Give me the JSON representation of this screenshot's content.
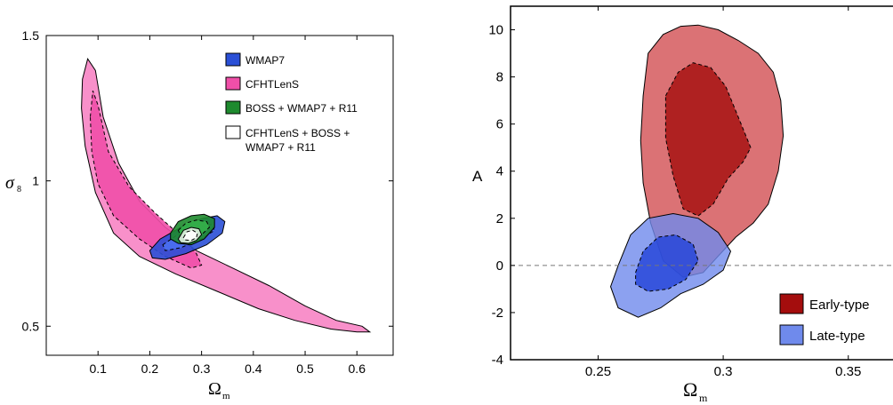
{
  "chart_data": [
    {
      "type": "contour",
      "title": "",
      "xlabel": "Ω",
      "xlabel_sub": "m",
      "ylabel": "σ",
      "ylabel_sub": "8",
      "xlim": [
        0.0,
        0.67
      ],
      "ylim": [
        0.4,
        1.5
      ],
      "xticks": [
        0.1,
        0.2,
        0.3,
        0.4,
        0.5,
        0.6
      ],
      "xtick_labels": [
        "0.1",
        "0.2",
        "0.3",
        "0.4",
        "0.5",
        "0.6"
      ],
      "yticks": [
        0.5,
        1.0,
        1.5
      ],
      "ytick_labels": [
        "0.5",
        "1",
        "1.5"
      ],
      "legend_position": "top-right",
      "legend": [
        {
          "label": "WMAP7",
          "color": "#2a4fd6"
        },
        {
          "label": "CFHTLenS",
          "color": "#f04fa8"
        },
        {
          "label": "BOSS + WMAP7 + R11",
          "color": "#1e8a2e"
        },
        {
          "label": "CFHTLenS + BOSS +",
          "label2": "WMAP7 + R11",
          "color": "#ffffff"
        }
      ],
      "series": [
        {
          "name": "CFHTLenS",
          "color": "#f784c4",
          "level": "outer",
          "points": [
            [
              0.07,
              1.35
            ],
            [
              0.08,
              1.42
            ],
            [
              0.095,
              1.38
            ],
            [
              0.11,
              1.22
            ],
            [
              0.14,
              1.06
            ],
            [
              0.18,
              0.93
            ],
            [
              0.23,
              0.84
            ],
            [
              0.29,
              0.76
            ],
            [
              0.36,
              0.7
            ],
            [
              0.43,
              0.64
            ],
            [
              0.5,
              0.57
            ],
            [
              0.56,
              0.52
            ],
            [
              0.61,
              0.5
            ],
            [
              0.625,
              0.48
            ],
            [
              0.6,
              0.48
            ],
            [
              0.55,
              0.49
            ],
            [
              0.48,
              0.52
            ],
            [
              0.41,
              0.56
            ],
            [
              0.33,
              0.62
            ],
            [
              0.25,
              0.68
            ],
            [
              0.18,
              0.74
            ],
            [
              0.13,
              0.82
            ],
            [
              0.095,
              0.96
            ],
            [
              0.075,
              1.12
            ],
            [
              0.068,
              1.25
            ]
          ]
        },
        {
          "name": "CFHTLenS",
          "color": "#f04fa8",
          "level": "inner",
          "points": [
            [
              0.085,
              1.22
            ],
            [
              0.09,
              1.31
            ],
            [
              0.1,
              1.26
            ],
            [
              0.12,
              1.1
            ],
            [
              0.16,
              0.98
            ],
            [
              0.21,
              0.89
            ],
            [
              0.26,
              0.81
            ],
            [
              0.29,
              0.75
            ],
            [
              0.3,
              0.71
            ],
            [
              0.28,
              0.7
            ],
            [
              0.23,
              0.74
            ],
            [
              0.18,
              0.8
            ],
            [
              0.13,
              0.88
            ],
            [
              0.1,
              0.99
            ],
            [
              0.088,
              1.1
            ]
          ]
        },
        {
          "name": "WMAP7",
          "color": "#2a4fd6",
          "level": "outer",
          "points": [
            [
              0.2,
              0.76
            ],
            [
              0.22,
              0.8
            ],
            [
              0.26,
              0.84
            ],
            [
              0.3,
              0.87
            ],
            [
              0.33,
              0.88
            ],
            [
              0.345,
              0.86
            ],
            [
              0.34,
              0.82
            ],
            [
              0.31,
              0.78
            ],
            [
              0.27,
              0.75
            ],
            [
              0.23,
              0.73
            ],
            [
              0.205,
              0.735
            ]
          ]
        },
        {
          "name": "WMAP7",
          "color": "#4a6ff0",
          "level": "inner",
          "points": [
            [
              0.225,
              0.78
            ],
            [
              0.25,
              0.81
            ],
            [
              0.29,
              0.84
            ],
            [
              0.32,
              0.85
            ],
            [
              0.325,
              0.83
            ],
            [
              0.3,
              0.8
            ],
            [
              0.26,
              0.77
            ],
            [
              0.23,
              0.76
            ]
          ]
        },
        {
          "name": "BOSS + WMAP7 + R11",
          "color": "#1e8a2e",
          "level": "outer",
          "points": [
            [
              0.24,
              0.82
            ],
            [
              0.255,
              0.86
            ],
            [
              0.28,
              0.88
            ],
            [
              0.305,
              0.885
            ],
            [
              0.325,
              0.87
            ],
            [
              0.325,
              0.84
            ],
            [
              0.305,
              0.8
            ],
            [
              0.28,
              0.78
            ],
            [
              0.255,
              0.785
            ],
            [
              0.24,
              0.8
            ]
          ]
        },
        {
          "name": "BOSS + WMAP7 + R11",
          "color": "#35b04a",
          "level": "inner",
          "points": [
            [
              0.255,
              0.83
            ],
            [
              0.27,
              0.855
            ],
            [
              0.29,
              0.865
            ],
            [
              0.31,
              0.86
            ],
            [
              0.315,
              0.84
            ],
            [
              0.3,
              0.815
            ],
            [
              0.28,
              0.8
            ],
            [
              0.262,
              0.805
            ]
          ]
        },
        {
          "name": "CFHTLenS + BOSS + WMAP7 + R11",
          "color": "#e2efe2",
          "level": "outer",
          "points": [
            [
              0.255,
              0.8
            ],
            [
              0.265,
              0.83
            ],
            [
              0.28,
              0.84
            ],
            [
              0.295,
              0.835
            ],
            [
              0.3,
              0.815
            ],
            [
              0.29,
              0.795
            ],
            [
              0.275,
              0.785
            ],
            [
              0.26,
              0.787
            ]
          ]
        },
        {
          "name": "CFHTLenS + BOSS + WMAP7 + R11",
          "color": "#ffffff",
          "level": "inner",
          "points": [
            [
              0.265,
              0.805
            ],
            [
              0.272,
              0.825
            ],
            [
              0.283,
              0.83
            ],
            [
              0.292,
              0.82
            ],
            [
              0.29,
              0.805
            ],
            [
              0.28,
              0.795
            ],
            [
              0.268,
              0.797
            ]
          ]
        }
      ]
    },
    {
      "type": "contour",
      "title": "",
      "xlabel": "Ω",
      "xlabel_sub": "m",
      "ylabel": "A",
      "xlim": [
        0.215,
        0.37
      ],
      "ylim": [
        -4,
        11
      ],
      "xticks": [
        0.25,
        0.3,
        0.35
      ],
      "xtick_labels": [
        "0.25",
        "0.3",
        "0.35"
      ],
      "yticks": [
        -4,
        -2,
        0,
        2,
        4,
        6,
        8,
        10
      ],
      "ytick_labels": [
        "-4",
        "-2",
        "0",
        "2",
        "4",
        "6",
        "8",
        "10"
      ],
      "zero_line": 0,
      "legend_position": "bottom-right",
      "legend": [
        {
          "label": "Early-type",
          "color": "#a40d0d"
        },
        {
          "label": "Late-type",
          "color": "#6f8aec"
        }
      ],
      "series": [
        {
          "name": "Early-type",
          "color": "#d24f52",
          "level": "outer",
          "points": [
            [
              0.27,
              9.0
            ],
            [
              0.276,
              9.8
            ],
            [
              0.283,
              10.15
            ],
            [
              0.29,
              10.2
            ],
            [
              0.298,
              10.0
            ],
            [
              0.306,
              9.55
            ],
            [
              0.314,
              9.0
            ],
            [
              0.32,
              8.2
            ],
            [
              0.323,
              7.0
            ],
            [
              0.324,
              5.5
            ],
            [
              0.322,
              4.0
            ],
            [
              0.318,
              2.6
            ],
            [
              0.312,
              1.8
            ],
            [
              0.305,
              1.2
            ],
            [
              0.298,
              0.4
            ],
            [
              0.292,
              -0.3
            ],
            [
              0.284,
              -0.5
            ],
            [
              0.276,
              0.2
            ],
            [
              0.271,
              1.8
            ],
            [
              0.268,
              3.5
            ],
            [
              0.267,
              5.3
            ],
            [
              0.268,
              7.2
            ]
          ]
        },
        {
          "name": "Early-type",
          "color": "#a40d0d",
          "level": "inner",
          "points": [
            [
              0.277,
              7.2
            ],
            [
              0.282,
              8.2
            ],
            [
              0.288,
              8.6
            ],
            [
              0.295,
              8.4
            ],
            [
              0.301,
              7.6
            ],
            [
              0.306,
              6.3
            ],
            [
              0.311,
              5.0
            ],
            [
              0.308,
              4.4
            ],
            [
              0.302,
              3.7
            ],
            [
              0.296,
              2.6
            ],
            [
              0.29,
              2.1
            ],
            [
              0.284,
              2.4
            ],
            [
              0.28,
              3.8
            ],
            [
              0.277,
              5.4
            ]
          ]
        },
        {
          "name": "Late-type",
          "color": "#6f8aec",
          "level": "outer",
          "points": [
            [
              0.258,
              0.0
            ],
            [
              0.263,
              1.3
            ],
            [
              0.27,
              2.0
            ],
            [
              0.28,
              2.2
            ],
            [
              0.29,
              2.0
            ],
            [
              0.298,
              1.4
            ],
            [
              0.303,
              0.6
            ],
            [
              0.3,
              -0.2
            ],
            [
              0.292,
              -0.8
            ],
            [
              0.283,
              -1.2
            ],
            [
              0.275,
              -1.8
            ],
            [
              0.266,
              -2.2
            ],
            [
              0.258,
              -1.8
            ],
            [
              0.255,
              -0.9
            ]
          ]
        },
        {
          "name": "Late-type",
          "color": "#2242d8",
          "level": "inner",
          "points": [
            [
              0.265,
              -0.3
            ],
            [
              0.268,
              0.6
            ],
            [
              0.274,
              1.2
            ],
            [
              0.281,
              1.3
            ],
            [
              0.288,
              0.9
            ],
            [
              0.29,
              0.2
            ],
            [
              0.285,
              -0.6
            ],
            [
              0.278,
              -1.0
            ],
            [
              0.27,
              -1.1
            ],
            [
              0.265,
              -0.8
            ]
          ]
        }
      ]
    }
  ]
}
